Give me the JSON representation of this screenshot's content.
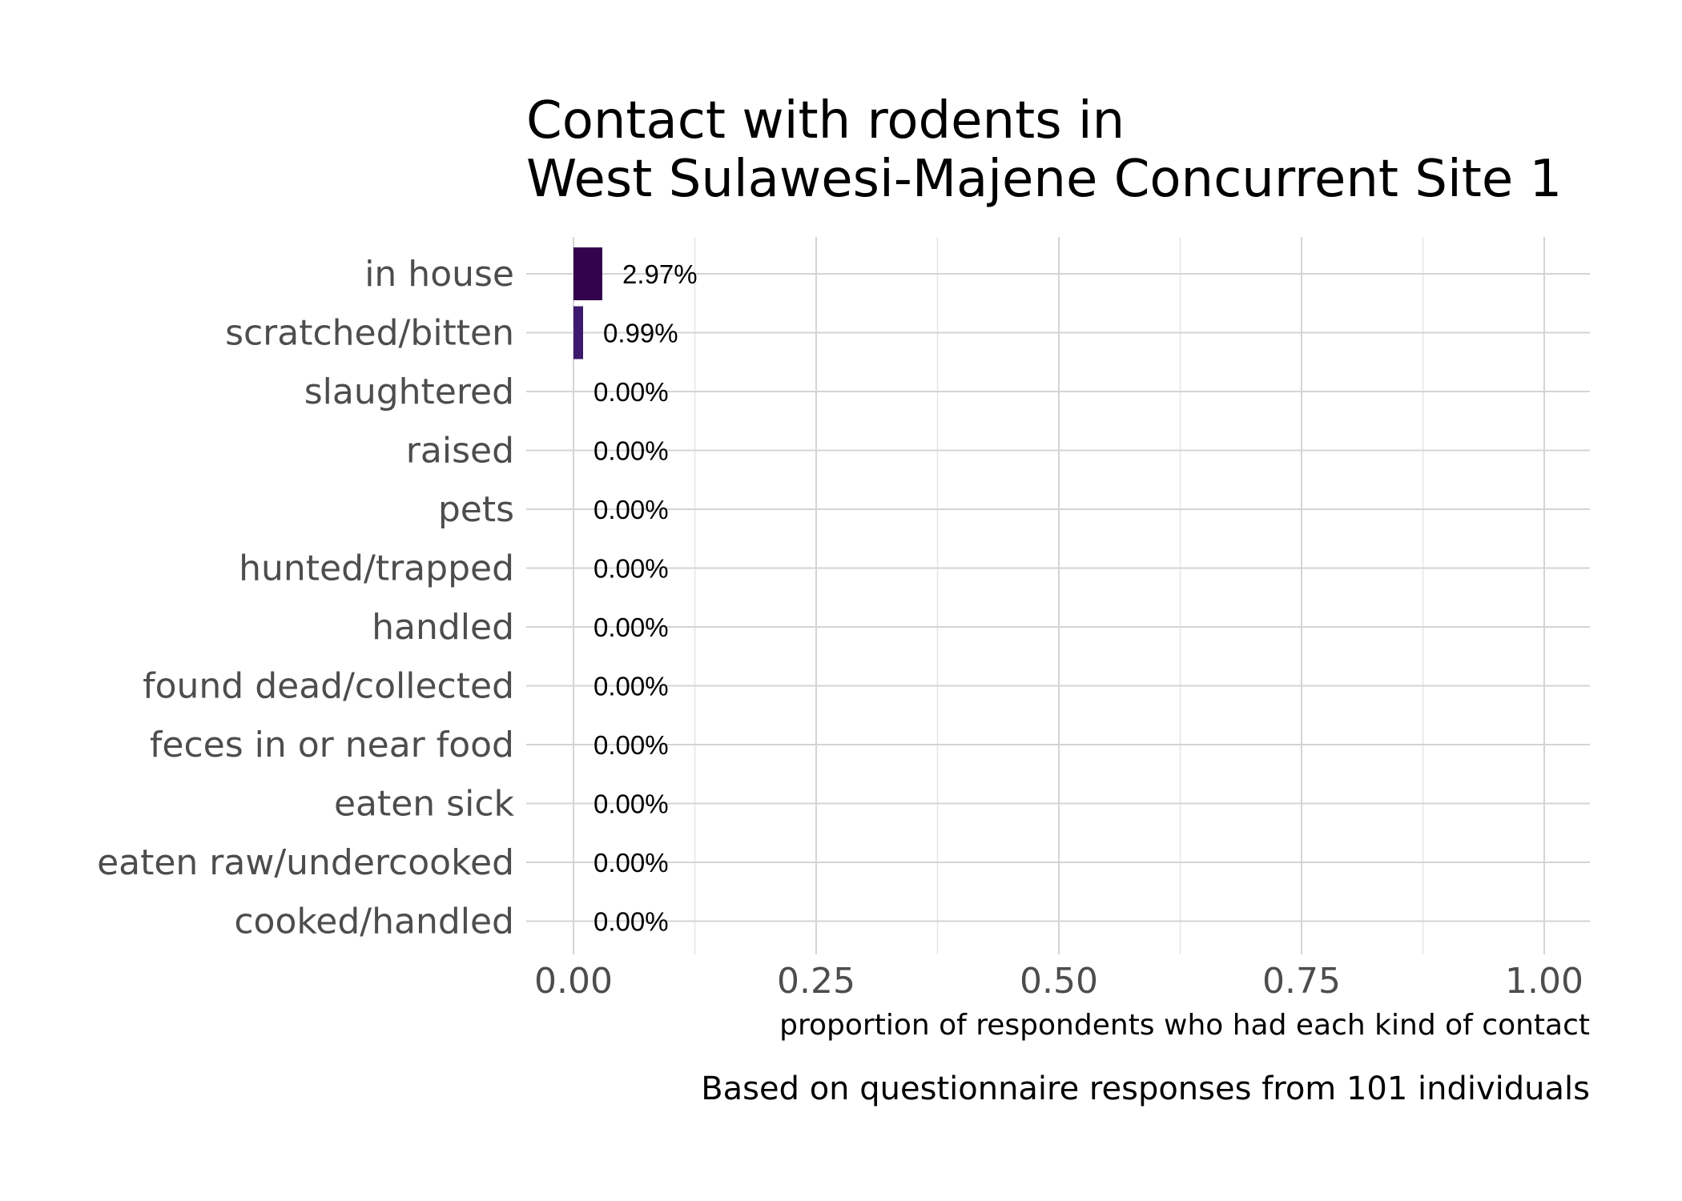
{
  "chart_data": {
    "type": "bar",
    "orientation": "horizontal",
    "title_lines": [
      "Contact with rodents in",
      "West Sulawesi-Majene Concurrent Site 1"
    ],
    "xlabel": "proportion of respondents who had each kind of contact",
    "caption": "Based on questionnaire responses from 101 individuals",
    "xlim": [
      0,
      1
    ],
    "x_ticks": [
      0.0,
      0.25,
      0.5,
      0.75,
      1.0
    ],
    "x_tick_labels": [
      "0.00",
      "0.25",
      "0.50",
      "0.75",
      "1.00"
    ],
    "grid": true,
    "legend": "none",
    "categories": [
      "in house",
      "scratched/bitten",
      "slaughtered",
      "raised",
      "pets",
      "hunted/trapped",
      "handled",
      "found dead/collected",
      "feces in or near food",
      "eaten sick",
      "eaten raw/undercooked",
      "cooked/handled"
    ],
    "values": [
      0.0297,
      0.0099,
      0,
      0,
      0,
      0,
      0,
      0,
      0,
      0,
      0,
      0
    ],
    "value_labels": [
      "2.97%",
      "0.99%",
      "0.00%",
      "0.00%",
      "0.00%",
      "0.00%",
      "0.00%",
      "0.00%",
      "0.00%",
      "0.00%",
      "0.00%",
      "0.00%"
    ],
    "bar_colors": [
      "#33044d",
      "#3e1a6e"
    ]
  }
}
